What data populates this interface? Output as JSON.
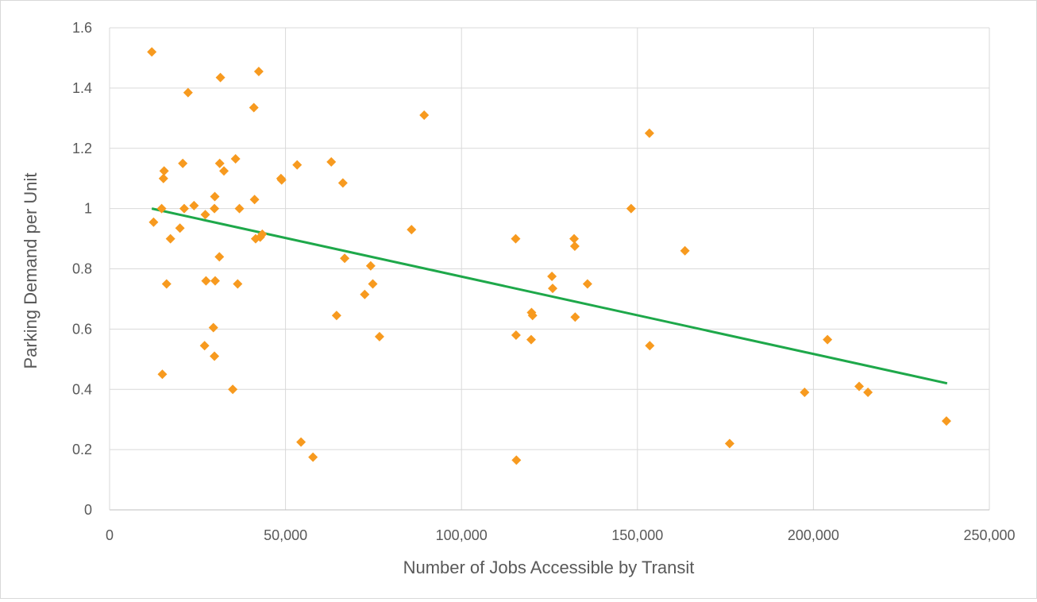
{
  "chart_data": {
    "type": "scatter",
    "title": "",
    "xlabel": "Number of Jobs Accessible by Transit",
    "ylabel": "Parking Demand per Unit",
    "xlim": [
      0,
      250000
    ],
    "ylim": [
      0,
      1.6
    ],
    "x_ticks": [
      0,
      50000,
      100000,
      150000,
      200000,
      250000
    ],
    "x_tick_labels": [
      "0",
      "50,000",
      "100,000",
      "150,000",
      "200,000",
      "250,000"
    ],
    "y_ticks": [
      0,
      0.2,
      0.4,
      0.6,
      0.8,
      1.0,
      1.2,
      1.4,
      1.6
    ],
    "y_tick_labels": [
      "0",
      "0.2",
      "0.4",
      "0.6",
      "0.8",
      "1",
      "1.2",
      "1.4",
      "1.6"
    ],
    "grid": true,
    "legend": "none",
    "marker": "diamond",
    "marker_color": "#f79a1f",
    "trendline_color": "#1ea84a",
    "series": [
      {
        "points": [
          [
            12000,
            1.52
          ],
          [
            12500,
            0.955
          ],
          [
            14800,
            1.0
          ],
          [
            15000,
            0.45
          ],
          [
            15300,
            1.1
          ],
          [
            15500,
            1.125
          ],
          [
            16200,
            0.75
          ],
          [
            17300,
            0.9
          ],
          [
            20000,
            0.935
          ],
          [
            20800,
            1.15
          ],
          [
            21200,
            1.0
          ],
          [
            22300,
            1.385
          ],
          [
            24000,
            1.01
          ],
          [
            27000,
            0.545
          ],
          [
            27200,
            0.98
          ],
          [
            27400,
            0.76
          ],
          [
            29500,
            0.605
          ],
          [
            29800,
            0.51
          ],
          [
            29800,
            1.0
          ],
          [
            29900,
            1.04
          ],
          [
            30000,
            0.76
          ],
          [
            31200,
            0.84
          ],
          [
            31300,
            1.15
          ],
          [
            31500,
            1.435
          ],
          [
            32500,
            1.125
          ],
          [
            35000,
            0.4
          ],
          [
            35800,
            1.165
          ],
          [
            36400,
            0.75
          ],
          [
            36900,
            1.0
          ],
          [
            41000,
            1.335
          ],
          [
            41200,
            1.03
          ],
          [
            41500,
            0.9
          ],
          [
            42400,
            1.455
          ],
          [
            42800,
            0.905
          ],
          [
            43400,
            0.915
          ],
          [
            48700,
            1.1
          ],
          [
            48900,
            1.095
          ],
          [
            53300,
            1.145
          ],
          [
            54400,
            0.225
          ],
          [
            57800,
            0.175
          ],
          [
            63000,
            1.155
          ],
          [
            64500,
            0.645
          ],
          [
            66300,
            1.085
          ],
          [
            66800,
            0.835
          ],
          [
            72500,
            0.715
          ],
          [
            74200,
            0.81
          ],
          [
            74800,
            0.75
          ],
          [
            76700,
            0.575
          ],
          [
            85800,
            0.93
          ],
          [
            89400,
            1.31
          ],
          [
            115400,
            0.9
          ],
          [
            115500,
            0.58
          ],
          [
            115600,
            0.165
          ],
          [
            119800,
            0.565
          ],
          [
            119900,
            0.655
          ],
          [
            120200,
            0.645
          ],
          [
            125700,
            0.775
          ],
          [
            125900,
            0.735
          ],
          [
            132000,
            0.9
          ],
          [
            132200,
            0.875
          ],
          [
            132300,
            0.64
          ],
          [
            135800,
            0.75
          ],
          [
            148200,
            1.0
          ],
          [
            153400,
            1.25
          ],
          [
            153500,
            0.545
          ],
          [
            163500,
            0.86
          ],
          [
            176200,
            0.22
          ],
          [
            197500,
            0.39
          ],
          [
            204000,
            0.565
          ],
          [
            213000,
            0.41
          ],
          [
            215500,
            0.39
          ],
          [
            237800,
            0.295
          ]
        ]
      }
    ],
    "trendline": {
      "type": "linear",
      "from": [
        12000,
        1.0
      ],
      "to": [
        238000,
        0.42
      ]
    }
  }
}
